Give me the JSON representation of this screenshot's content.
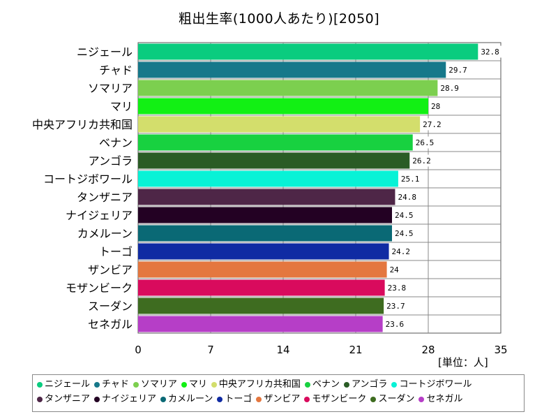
{
  "chart_data": {
    "type": "bar",
    "orientation": "horizontal",
    "title": "粗出生率(1000人あたり)[2050]",
    "unit": "[単位：人]",
    "xlim": [
      0,
      35
    ],
    "xticks": [
      "0",
      "7",
      "14",
      "21",
      "28",
      "35"
    ],
    "grid": true,
    "legend_position": "bottom",
    "categories": [
      "ニジェール",
      "チャド",
      "ソマリア",
      "マリ",
      "中央アフリカ共和国",
      "ベナン",
      "アンゴラ",
      "コートジボワール",
      "タンザニア",
      "ナイジェリア",
      "カメルーン",
      "トーゴ",
      "ザンビア",
      "モザンビーク",
      "スーダン",
      "セネガル"
    ],
    "values": [
      32.8,
      29.7,
      28.9,
      28,
      27.2,
      26.5,
      26.2,
      25.1,
      24.8,
      24.5,
      24.5,
      24.2,
      24,
      23.8,
      23.7,
      23.6
    ],
    "value_labels": [
      "32.8",
      "29.7",
      "28.9",
      "28",
      "27.2",
      "26.5",
      "26.2",
      "25.1",
      "24.8",
      "24.5",
      "24.5",
      "24.2",
      "24",
      "23.8",
      "23.7",
      "23.6"
    ],
    "colors": [
      "#0acc7f",
      "#16788a",
      "#7ccf4f",
      "#12f014",
      "#d3de6c",
      "#18d140",
      "#2a5c25",
      "#08f2d6",
      "#4e2647",
      "#230123",
      "#0a6975",
      "#102ba3",
      "#e4773f",
      "#d90b5d",
      "#3e6c20",
      "#b63ec7"
    ]
  }
}
